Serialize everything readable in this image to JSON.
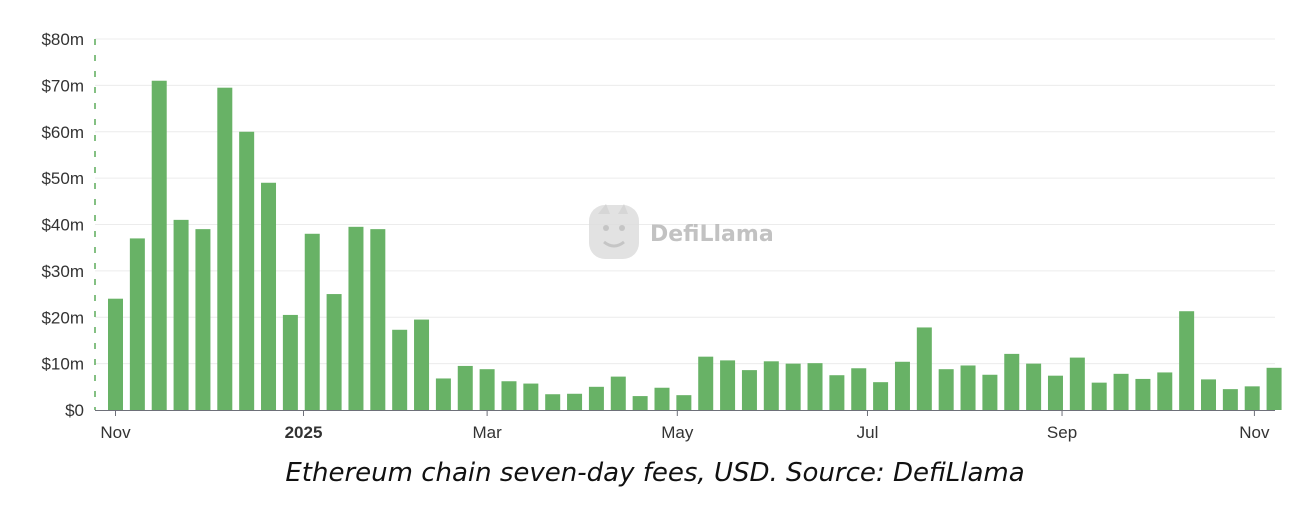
{
  "chart_data": {
    "type": "bar",
    "y_tick_labels": [
      "$0",
      "$10m",
      "$20m",
      "$30m",
      "$40m",
      "$50m",
      "$60m",
      "$70m",
      "$80m"
    ],
    "ylim": [
      0,
      80
    ],
    "y_unit": "millions USD",
    "x_tick_labels": [
      {
        "label": "Nov",
        "bar_index": 0,
        "bold": false
      },
      {
        "label": "2025",
        "bar_index": 8.6,
        "bold": true
      },
      {
        "label": "Mar",
        "bar_index": 17,
        "bold": false
      },
      {
        "label": "May",
        "bar_index": 25.7,
        "bold": false
      },
      {
        "label": "Jul",
        "bar_index": 34.4,
        "bold": false
      },
      {
        "label": "Sep",
        "bar_index": 43.3,
        "bold": false
      },
      {
        "label": "Nov",
        "bar_index": 52.1,
        "bold": false
      }
    ],
    "values": [
      24,
      37,
      71,
      41,
      39,
      69.5,
      60,
      49,
      20.5,
      38,
      25,
      39.5,
      39,
      17.3,
      19.5,
      6.8,
      9.5,
      8.8,
      6.2,
      5.7,
      3.4,
      3.5,
      5,
      7.2,
      3,
      4.8,
      3.2,
      11.5,
      10.7,
      8.6,
      10.5,
      10,
      10.1,
      7.5,
      9,
      6,
      10.4,
      17.8,
      8.8,
      9.6,
      7.6,
      12.1,
      10,
      7.4,
      11.3,
      5.9,
      7.8,
      6.7,
      8.1,
      21.3,
      6.6,
      4.5,
      5.1,
      9.1
    ],
    "bar_color": "#68b266",
    "grid": true,
    "legend": "none",
    "watermark": "DefiLlama"
  },
  "caption": "Ethereum chain seven-day fees, USD. Source: DefiLlama"
}
